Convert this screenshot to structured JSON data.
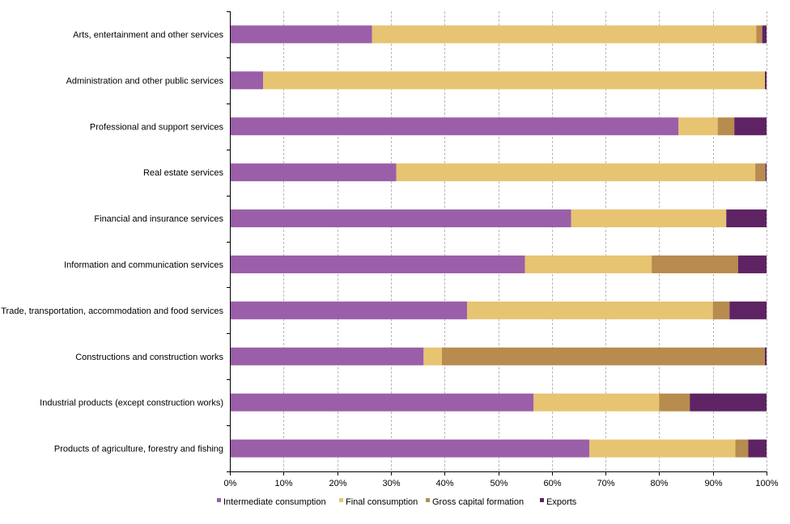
{
  "chart_data": {
    "type": "bar",
    "orientation": "horizontal",
    "stacked": "percent",
    "title": "",
    "xlabel": "",
    "ylabel": "",
    "xlim": [
      0,
      100
    ],
    "grid": true,
    "legend_position": "bottom",
    "categories": [
      "Arts, entertainment and other services",
      "Administration and other public services",
      "Professional and support services",
      "Real estate services",
      "Financial and insurance services",
      "Information and communication services",
      "Trade, transportation, accommodation and food services",
      "Constructions and construction works",
      "Industrial products (except construction works)",
      "Products of agriculture, forestry and fishing"
    ],
    "x_ticks": [
      "0%",
      "10%",
      "20%",
      "30%",
      "40%",
      "50%",
      "60%",
      "70%",
      "80%",
      "90%",
      "100%"
    ],
    "series": [
      {
        "name": "Intermediate consumption",
        "color": "#9a5fa8",
        "values": [
          26.5,
          6.2,
          83.6,
          31.0,
          63.6,
          55.0,
          44.2,
          36.1,
          56.6,
          67.0
        ]
      },
      {
        "name": "Final consumption",
        "color": "#e6c472",
        "values": [
          71.6,
          93.5,
          7.3,
          66.9,
          28.9,
          23.6,
          45.8,
          3.4,
          23.4,
          27.2
        ]
      },
      {
        "name": "Gross capital formation",
        "color": "#b88b4e",
        "values": [
          1.1,
          0.0,
          3.1,
          1.9,
          0.0,
          16.1,
          3.1,
          60.2,
          5.7,
          2.4
        ]
      },
      {
        "name": "Exports",
        "color": "#5e2363",
        "values": [
          0.8,
          0.3,
          6.0,
          0.2,
          7.5,
          5.3,
          6.9,
          0.3,
          14.3,
          3.4
        ]
      }
    ]
  }
}
